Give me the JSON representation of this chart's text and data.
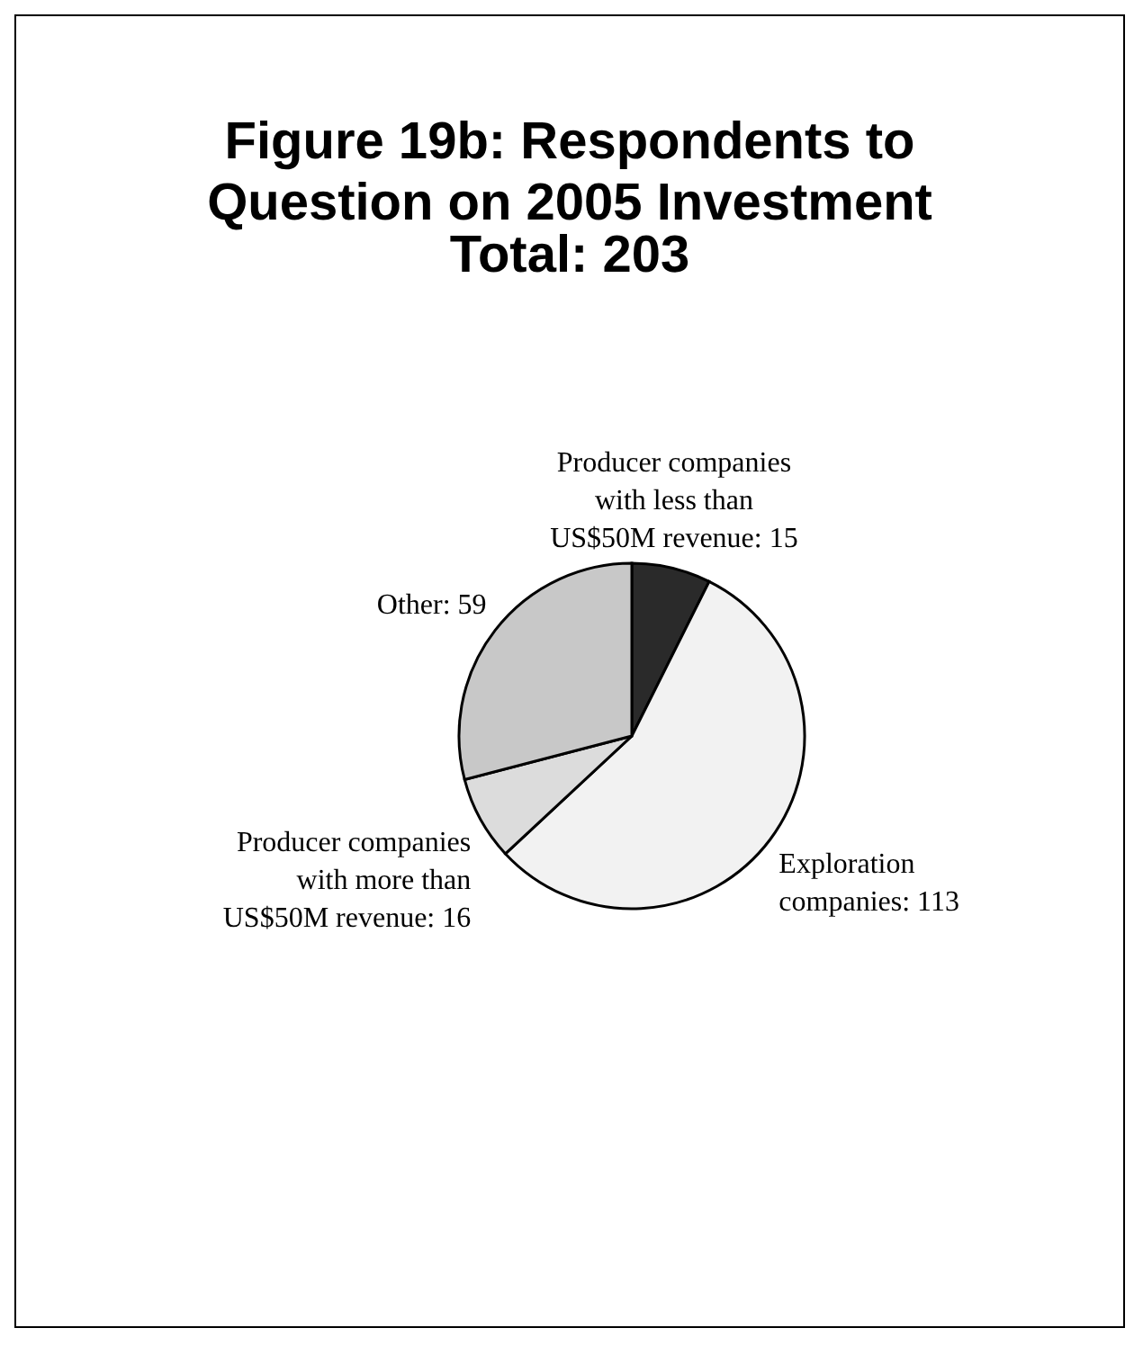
{
  "chart_data": {
    "type": "pie",
    "title": "Figure 19b: Respondents to Question on 2005 Investment",
    "subtitle": "Total: 203",
    "categories": [
      "Producer companies with less than US$50M revenue",
      "Exploration companies",
      "Producer companies with more than US$50M revenue",
      "Other"
    ],
    "values": [
      15,
      113,
      16,
      59
    ],
    "colors": [
      "#2a2a2a",
      "#f2f2f2",
      "#dcdcdc",
      "#c8c8c8"
    ],
    "value_labels": [
      ": 15",
      ": 113",
      ": 16",
      ": 59"
    ],
    "legend": false
  }
}
